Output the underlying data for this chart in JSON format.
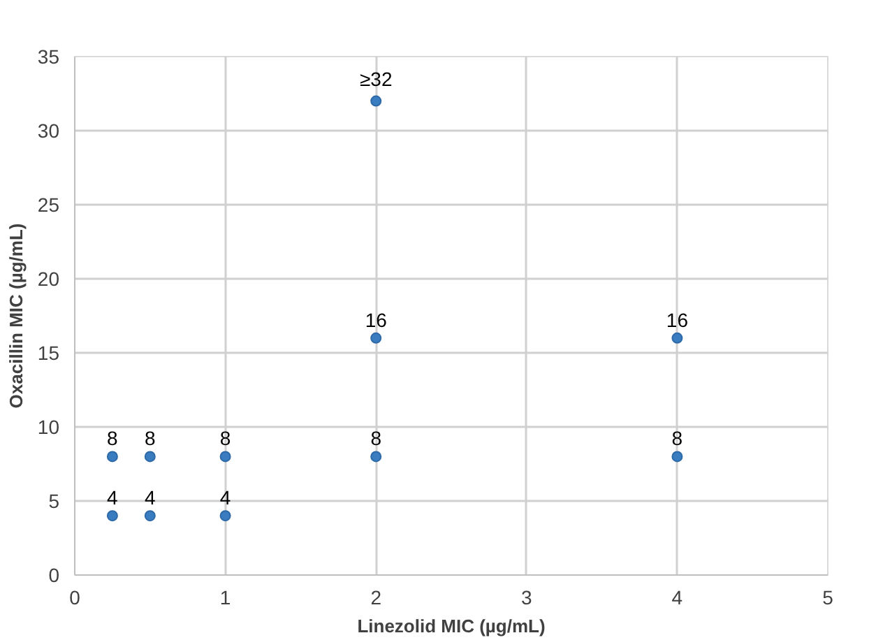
{
  "chart_data": {
    "type": "scatter",
    "xlabel": "Linezolid MIC (µg/mL)",
    "ylabel": "Oxacillin MIC (µg/mL)",
    "x": [
      0.25,
      0.25,
      0.5,
      0.5,
      1,
      1,
      2,
      2,
      2,
      4,
      4
    ],
    "values": [
      4,
      8,
      4,
      8,
      4,
      8,
      8,
      16,
      32,
      8,
      16
    ],
    "value_labels": [
      "4",
      "8",
      "4",
      "8",
      "4",
      "8",
      "8",
      "16",
      "≥32",
      "8",
      "16"
    ],
    "color": "#3a7cc0",
    "marker": "circle",
    "xlim": [
      0,
      5
    ],
    "xticks": [
      0,
      1,
      2,
      3,
      4,
      5
    ],
    "ylim": [
      0,
      35
    ],
    "yticks": [
      0,
      5,
      10,
      15,
      20,
      25,
      30,
      35
    ],
    "grid": true
  }
}
